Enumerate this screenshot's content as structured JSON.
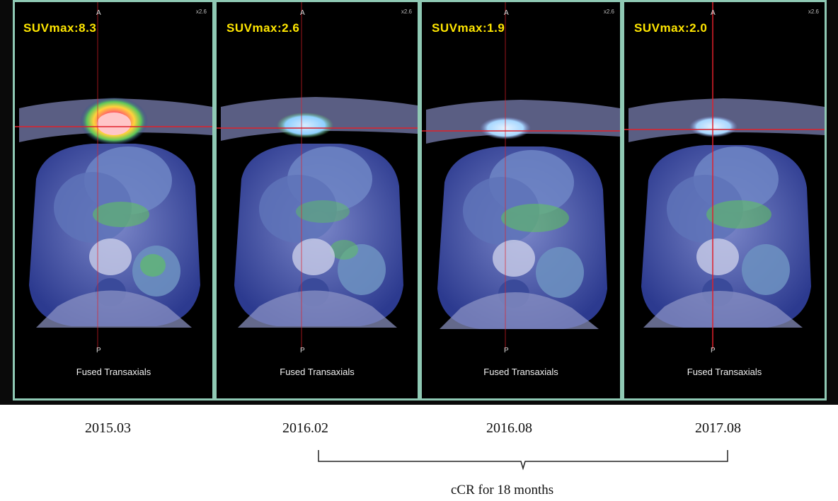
{
  "panels": [
    {
      "suv": "SUVmax:8.3",
      "a": "A",
      "p": "P",
      "zoom": "x2.6",
      "caption": "Fused Transaxials",
      "date": "2015.03",
      "hot": true
    },
    {
      "suv": "SUVmax:2.6",
      "a": "A",
      "p": "P",
      "zoom": "x2.6",
      "caption": "Fused Transaxials",
      "date": "2016.02",
      "hot": false
    },
    {
      "suv": "SUVmax:1.9",
      "a": "A",
      "p": "P",
      "zoom": "x2.6",
      "caption": "Fused Transaxials",
      "date": "2016.08",
      "hot": false
    },
    {
      "suv": "SUVmax:2.0",
      "a": "A",
      "p": "P",
      "zoom": "x2.6",
      "caption": "Fused Transaxials",
      "date": "2017.08",
      "hot": false
    }
  ],
  "annotation": "cCR for  18 months",
  "colors": {
    "frame": "#8fc9b4",
    "suv_text": "#ffe600",
    "crosshair": "#e0202a",
    "tissue": "#5a6fb8",
    "uptake": "#5ec65a"
  }
}
